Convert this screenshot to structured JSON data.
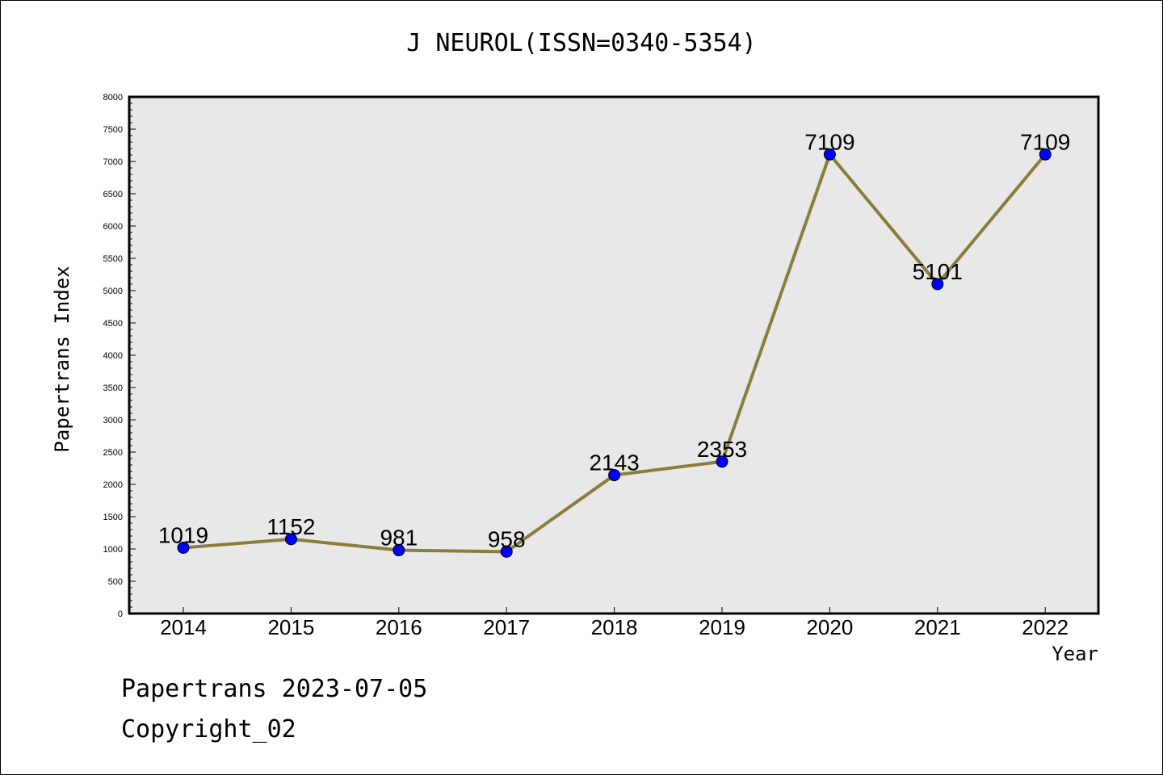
{
  "chart_data": {
    "type": "line",
    "title": "J NEUROL(ISSN=0340-5354)",
    "xlabel": "Year",
    "ylabel": "Papertrans Index",
    "categories": [
      "2014",
      "2015",
      "2016",
      "2017",
      "2018",
      "2019",
      "2020",
      "2021",
      "2022"
    ],
    "values": [
      1019,
      1152,
      981,
      958,
      2143,
      2353,
      7109,
      5101,
      7109
    ],
    "ylim": [
      0,
      8000
    ],
    "yticks": [
      0,
      500,
      1000,
      1500,
      2000,
      2500,
      3000,
      3500,
      4000,
      4500,
      5000,
      5500,
      6000,
      6500,
      7000,
      7500,
      8000
    ],
    "grid": false,
    "colors": {
      "line": "#8b7d3a",
      "marker": "#0000ff",
      "plot_bg": "#e8e8e8"
    }
  },
  "footer": {
    "line1": "Papertrans 2023-07-05",
    "line2": "Copyright_02"
  }
}
